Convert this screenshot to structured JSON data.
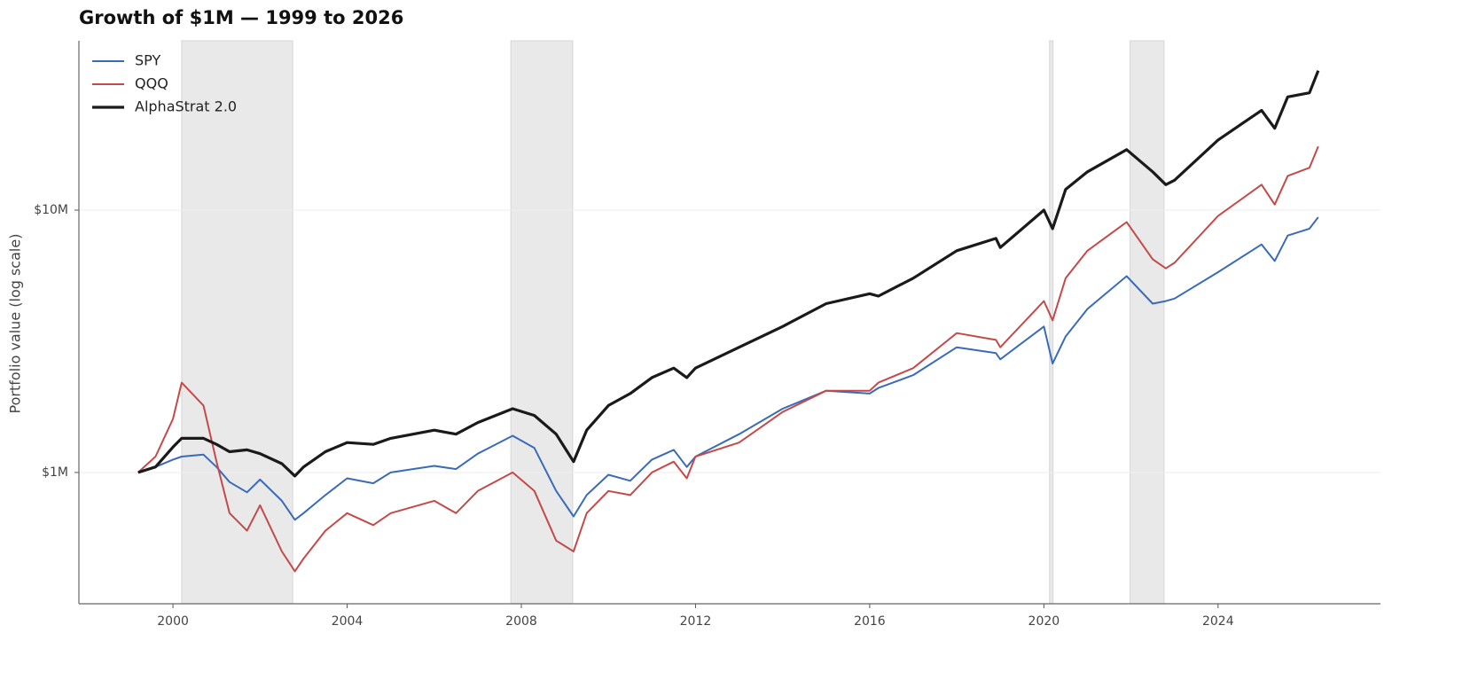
{
  "chart_data": {
    "type": "line",
    "title": "Growth of $1M — 1999 to 2026",
    "y_label": "Portfolio value (log scale)",
    "log_scale": true,
    "grid": true,
    "legend": "upper left",
    "x": [
      1999.2,
      1999.6,
      2000.0,
      2000.2,
      2000.7,
      2001.0,
      2001.3,
      2001.7,
      2002.0,
      2002.5,
      2002.8,
      2003.0,
      2003.5,
      2004.0,
      2004.6,
      2005.0,
      2006.0,
      2006.5,
      2007.0,
      2007.8,
      2008.3,
      2008.8,
      2009.2,
      2009.5,
      2010.0,
      2010.5,
      2011.0,
      2011.5,
      2011.8,
      2012.0,
      2013.0,
      2014.0,
      2015.0,
      2016.0,
      2016.2,
      2017.0,
      2018.0,
      2018.9,
      2019.0,
      2020.0,
      2020.2,
      2020.5,
      2021.0,
      2021.9,
      2022.5,
      2022.8,
      2023.0,
      2024.0,
      2025.0,
      2025.3,
      2025.6,
      2026.1,
      2026.3
    ],
    "series": [
      {
        "name": "SPY",
        "color": "#3a6bb8",
        "line_width": 2,
        "values": [
          1000000,
          1050000,
          1120000,
          1150000,
          1170000,
          1050000,
          920000,
          840000,
          940000,
          780000,
          660000,
          700000,
          820000,
          950000,
          910000,
          1000000,
          1060000,
          1030000,
          1180000,
          1380000,
          1240000,
          850000,
          680000,
          820000,
          980000,
          930000,
          1120000,
          1220000,
          1050000,
          1150000,
          1400000,
          1750000,
          2050000,
          2000000,
          2100000,
          2350000,
          3000000,
          2850000,
          2700000,
          3600000,
          2600000,
          3300000,
          4200000,
          5600000,
          4400000,
          4500000,
          4600000,
          5800000,
          7400000,
          6400000,
          8000000,
          8500000,
          9400000
        ]
      },
      {
        "name": "QQQ",
        "color": "#c44a4a",
        "line_width": 2,
        "values": [
          1000000,
          1150000,
          1600000,
          2200000,
          1800000,
          1100000,
          700000,
          600000,
          750000,
          500000,
          420000,
          470000,
          600000,
          700000,
          630000,
          700000,
          780000,
          700000,
          850000,
          1000000,
          850000,
          550000,
          500000,
          700000,
          850000,
          820000,
          1000000,
          1100000,
          950000,
          1150000,
          1300000,
          1700000,
          2050000,
          2050000,
          2200000,
          2500000,
          3400000,
          3200000,
          3000000,
          4500000,
          3800000,
          5500000,
          7000000,
          9000000,
          6500000,
          6000000,
          6300000,
          9500000,
          12500000,
          10500000,
          13500000,
          14500000,
          17500000
        ]
      },
      {
        "name": "AlphaStrat 2.0",
        "color": "#1a1a1a",
        "line_width": 3.2,
        "values": [
          1000000,
          1050000,
          1250000,
          1350000,
          1350000,
          1280000,
          1200000,
          1220000,
          1180000,
          1080000,
          970000,
          1050000,
          1200000,
          1300000,
          1280000,
          1350000,
          1450000,
          1400000,
          1550000,
          1750000,
          1650000,
          1400000,
          1100000,
          1450000,
          1800000,
          2000000,
          2300000,
          2500000,
          2300000,
          2500000,
          3000000,
          3600000,
          4400000,
          4800000,
          4700000,
          5500000,
          7000000,
          7800000,
          7200000,
          10000000,
          8500000,
          12000000,
          14000000,
          17000000,
          14000000,
          12500000,
          13000000,
          18500000,
          24000000,
          20500000,
          27000000,
          28000000,
          34000000
        ]
      }
    ],
    "shaded_regions": [
      [
        2000.2,
        2002.75
      ],
      [
        2007.76,
        2009.18
      ],
      [
        2020.13,
        2020.21
      ],
      [
        2021.98,
        2022.76
      ]
    ],
    "shade_color": "#e9e9e9",
    "xlim": [
      1997.84,
      2027.73
    ],
    "xticks": [
      2000,
      2004,
      2008,
      2012,
      2016,
      2020,
      2024
    ],
    "ylim": [
      316000,
      44200000
    ],
    "yticks": [
      {
        "value": 1000000,
        "label": "$1M"
      },
      {
        "value": 10000000,
        "label": "$10M"
      }
    ]
  }
}
